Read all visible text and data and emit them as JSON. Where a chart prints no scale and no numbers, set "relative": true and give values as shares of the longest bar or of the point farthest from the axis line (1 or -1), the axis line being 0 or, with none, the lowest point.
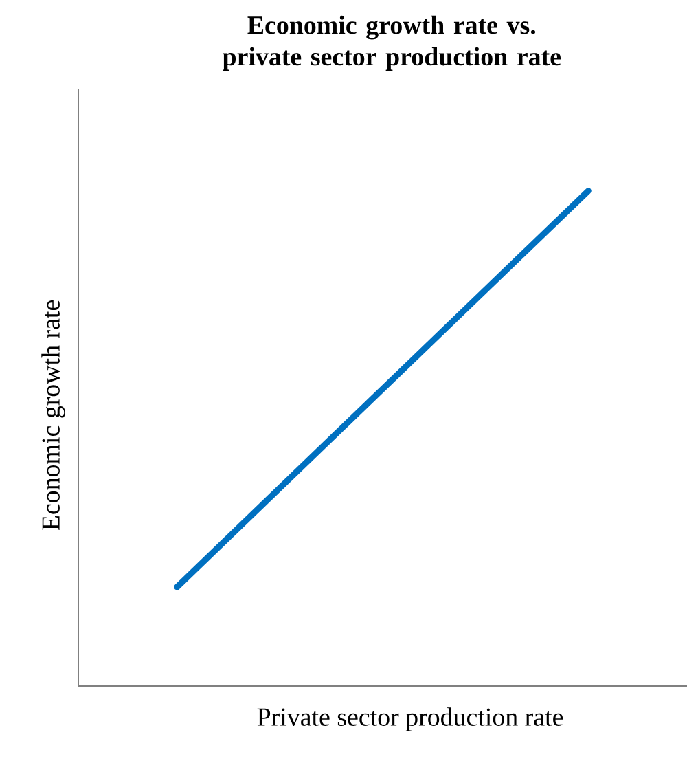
{
  "chart_data": {
    "type": "line",
    "title": "Economic growth rate vs. private sector production rate",
    "xlabel": "Private sector production rate",
    "ylabel": "Economic growth rate",
    "categories": [
      null,
      null
    ],
    "relative": true,
    "series": [
      {
        "color": "#0070c0",
        "values": [
          0.2,
          1
        ]
      }
    ]
  }
}
